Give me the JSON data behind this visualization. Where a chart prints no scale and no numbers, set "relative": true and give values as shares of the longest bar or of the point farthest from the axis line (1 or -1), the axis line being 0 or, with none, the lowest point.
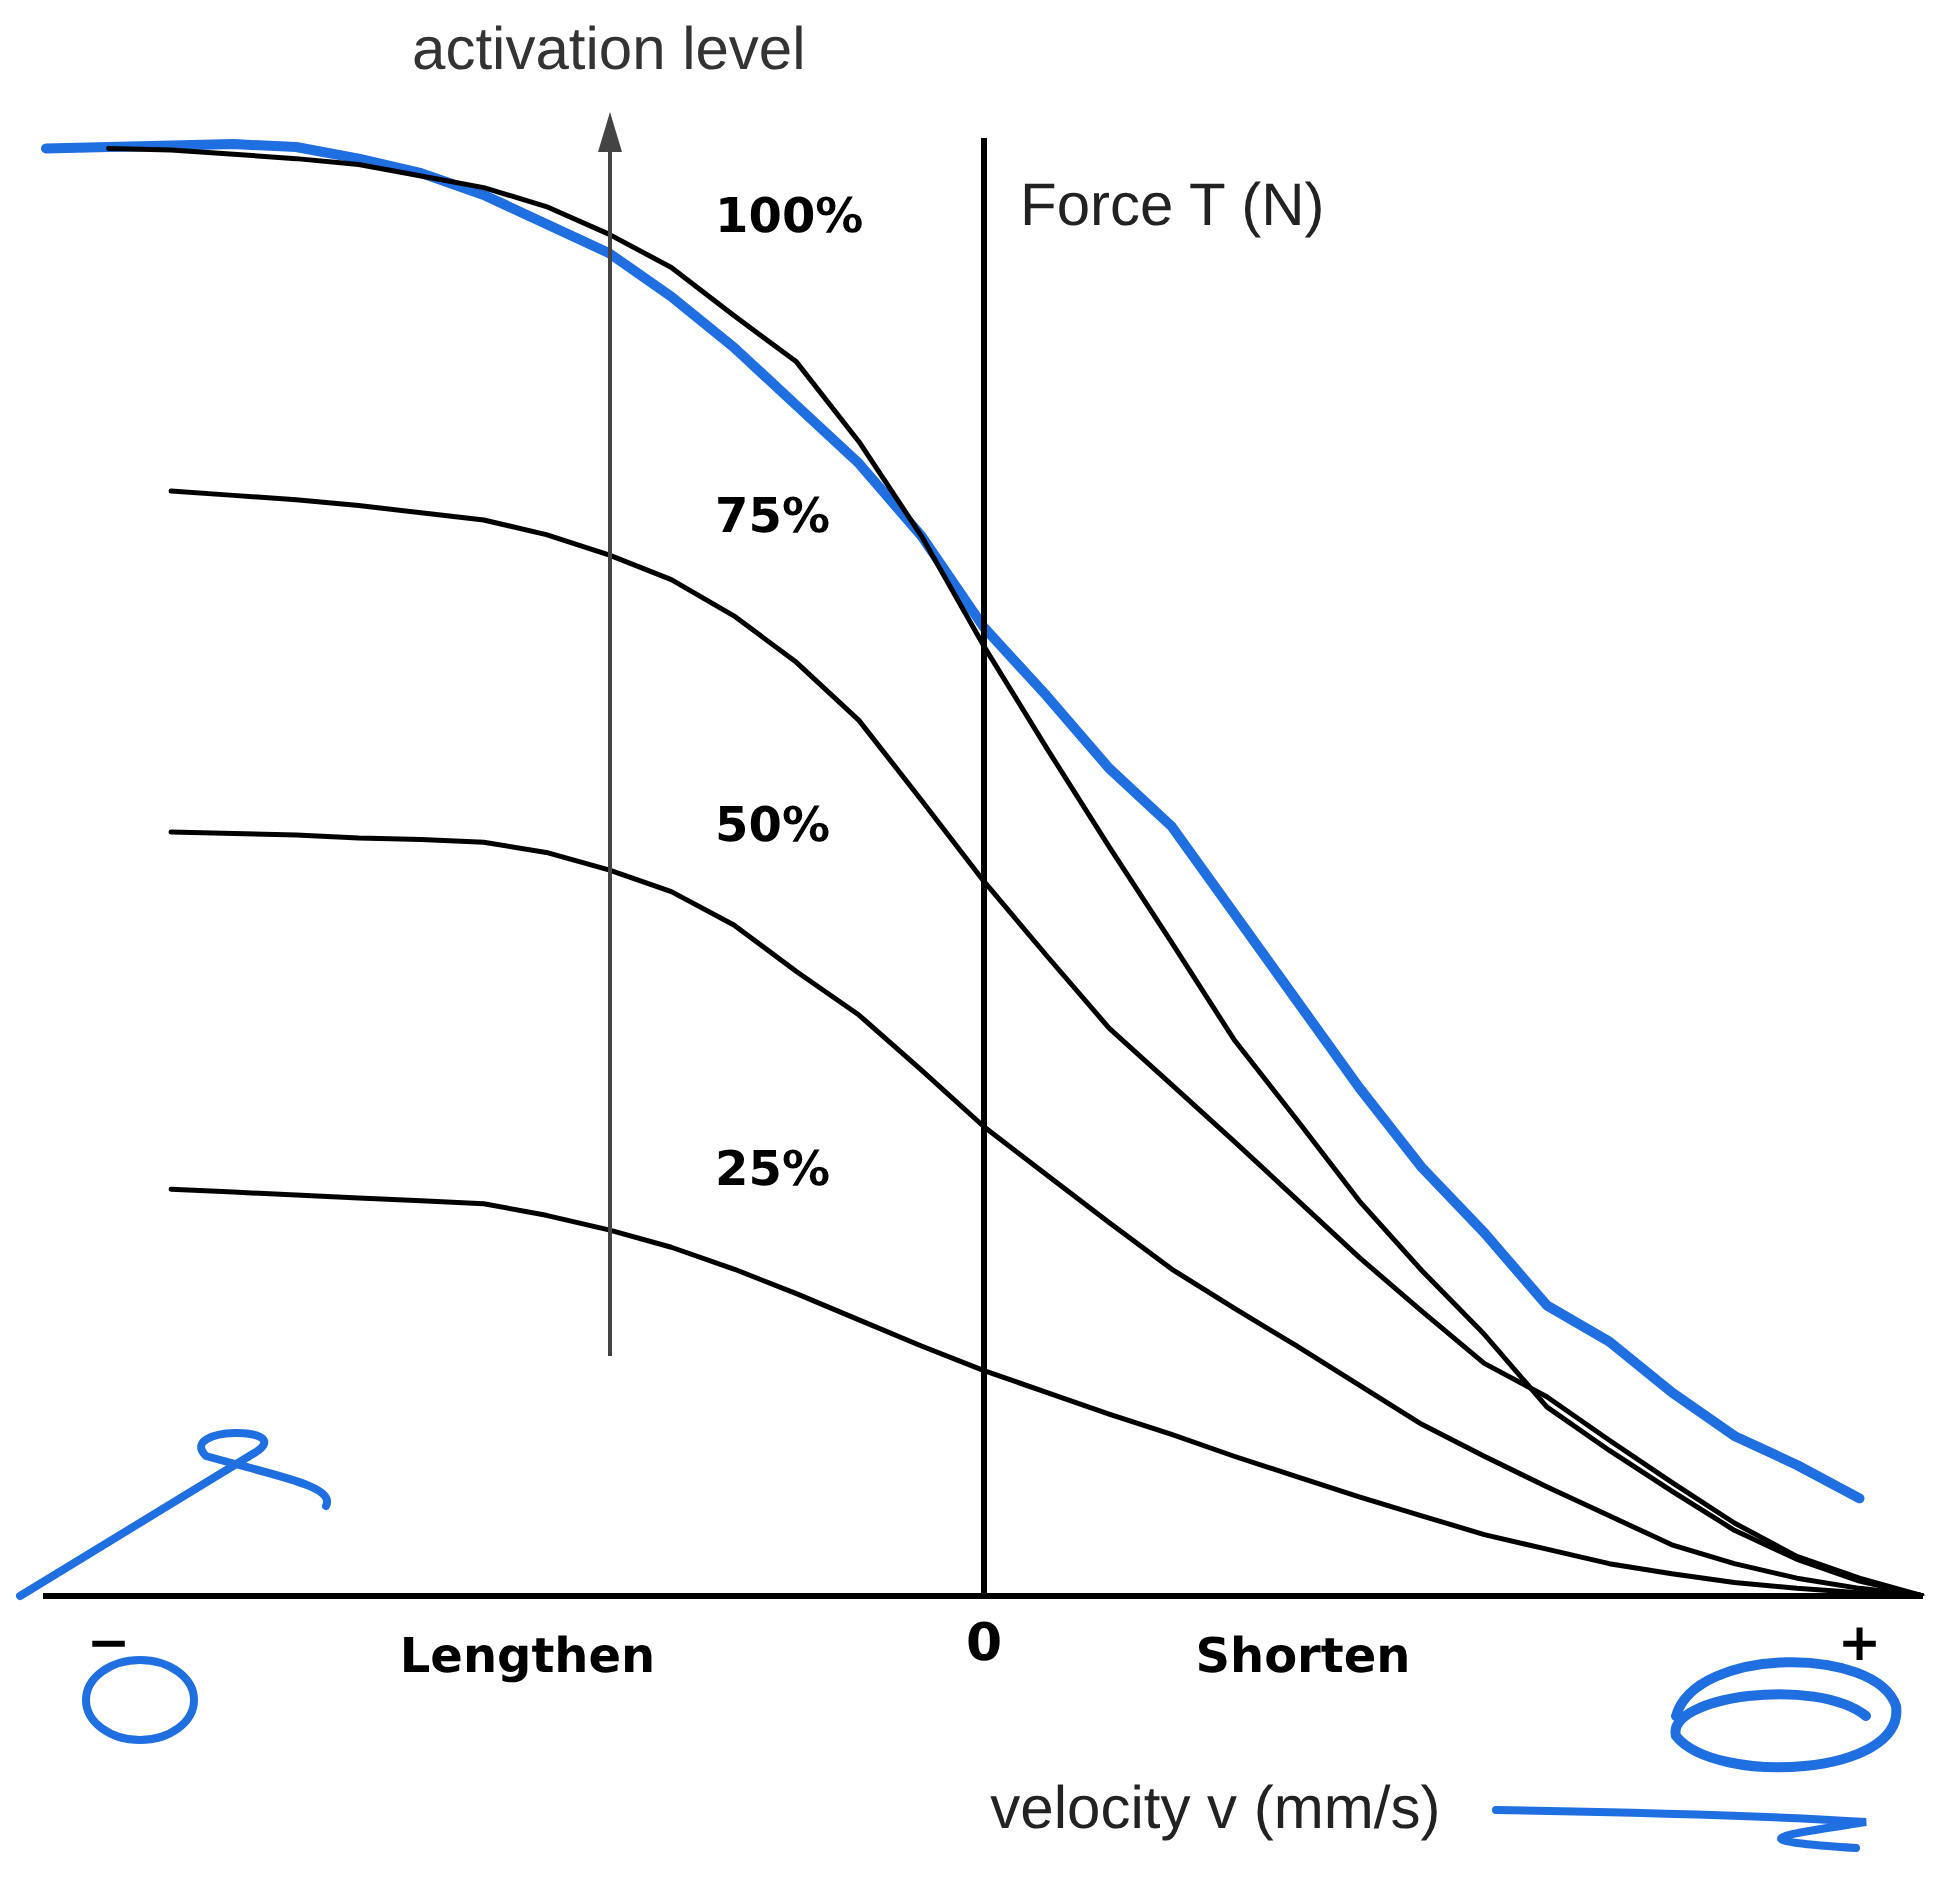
{
  "chart_data": {
    "type": "line",
    "relative": true,
    "xlabel": "velocity v (mm/s)",
    "ylabel": "Force T (N)",
    "annotations": [
      "activation level",
      "Lengthen",
      "Shorten"
    ],
    "categories": [
      null,
      "−",
      null,
      null,
      null,
      null,
      null,
      null,
      null,
      null,
      null,
      null,
      null,
      null,
      null,
      "0",
      null,
      null,
      null,
      null,
      null,
      null,
      null,
      null,
      null,
      null,
      null,
      null,
      null,
      "+",
      null
    ],
    "grid": false,
    "legend": false,
    "marker": "none",
    "line_style": "solid",
    "series": [
      {
        "name": "100%",
        "color": "#000000",
        "values": [
          null,
          0.997,
          0.996,
          0.993,
          0.99,
          0.986,
          0.978,
          0.97,
          0.957,
          0.938,
          0.915,
          0.882,
          0.85,
          0.795,
          0.73,
          0.654,
          0.584,
          0.516,
          0.45,
          0.383,
          0.328,
          0.272,
          0.224,
          0.18,
          0.13,
          0.1,
          0.072,
          0.045,
          0.025,
          0.01,
          0
        ]
      },
      {
        "name": "75%",
        "color": "#000000",
        "values": [
          null,
          null,
          0.761,
          0.758,
          0.755,
          0.751,
          0.746,
          0.741,
          0.731,
          0.717,
          0.7,
          0.675,
          0.643,
          0.603,
          0.548,
          0.492,
          0.441,
          0.391,
          0.352,
          0.313,
          0.273,
          0.233,
          0.196,
          0.16,
          0.137,
          0.107,
          0.078,
          0.05,
          0.027,
          0.012,
          0
        ]
      },
      {
        "name": "50%",
        "color": "#000000",
        "values": [
          null,
          null,
          0.526,
          0.525,
          0.524,
          0.522,
          0.521,
          0.519,
          0.512,
          0.5,
          0.485,
          0.462,
          0.43,
          0.4,
          0.362,
          0.323,
          0.29,
          0.257,
          0.225,
          0.198,
          0.172,
          0.145,
          0.118,
          0.096,
          0.075,
          0.055,
          0.035,
          0.022,
          0.012,
          0.005,
          0
        ]
      },
      {
        "name": "25%",
        "color": "#000000",
        "values": [
          null,
          null,
          0.28,
          0.278,
          0.276,
          0.274,
          0.272,
          0.27,
          0.262,
          0.252,
          0.24,
          0.225,
          0.208,
          0.19,
          0.172,
          0.155,
          0.14,
          0.125,
          0.111,
          0.096,
          0.082,
          0.068,
          0.055,
          0.042,
          0.032,
          0.022,
          0.015,
          0.009,
          0.005,
          0.002,
          0
        ]
      },
      {
        "color": "#1f6fe0",
        "values": [
          0.997,
          0.998,
          0.999,
          1.0,
          0.998,
          0.99,
          0.98,
          0.965,
          0.945,
          0.925,
          0.895,
          0.86,
          0.82,
          0.78,
          0.73,
          0.667,
          0.62,
          0.57,
          0.53,
          0.47,
          0.41,
          0.35,
          0.295,
          0.25,
          0.2,
          0.175,
          0.14,
          0.11,
          0.09,
          0.067,
          null
        ]
      }
    ]
  }
}
